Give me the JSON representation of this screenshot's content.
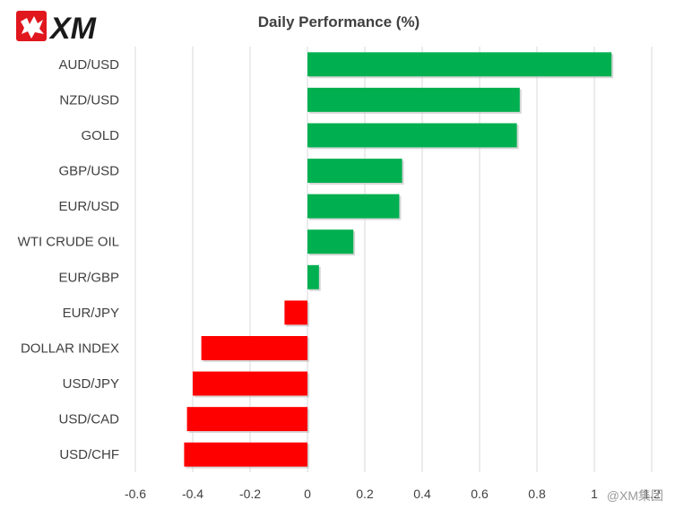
{
  "brand": {
    "logo_text": "XM",
    "logo_color": "#e1171e",
    "logo_text_color": "#1a1a1a"
  },
  "watermark": {
    "text": "@XM集团"
  },
  "colors": {
    "positive": "#00b050",
    "negative": "#ff0000",
    "grid": "#d9d9d9",
    "text": "#404040"
  },
  "chart_data": {
    "type": "bar",
    "orientation": "horizontal",
    "title": "Daily Performance  (%)",
    "categories": [
      "AUD/USD",
      "NZD/USD",
      "GOLD",
      "GBP/USD",
      "EUR/USD",
      "WTI CRUDE OIL",
      "EUR/GBP",
      "EUR/JPY",
      "DOLLAR INDEX",
      "USD/JPY",
      "USD/CAD",
      "USD/CHF"
    ],
    "values": [
      1.06,
      0.74,
      0.73,
      0.33,
      0.32,
      0.16,
      0.04,
      -0.08,
      -0.37,
      -0.4,
      -0.42,
      -0.43
    ],
    "xlim": [
      -0.6,
      1.2
    ],
    "xticks": [
      "-0.6",
      "-0.4",
      "-0.2",
      "0",
      "0.2",
      "0.4",
      "0.6",
      "0.8",
      "1",
      "1.2"
    ],
    "xtick_values": [
      -0.6,
      -0.4,
      -0.2,
      0,
      0.2,
      0.4,
      0.6,
      0.8,
      1,
      1.2
    ],
    "grid": true,
    "legend": "none"
  }
}
